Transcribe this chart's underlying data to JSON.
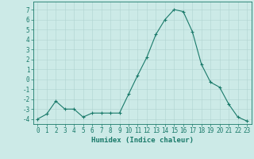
{
  "x": [
    0,
    1,
    2,
    3,
    4,
    5,
    6,
    7,
    8,
    9,
    10,
    11,
    12,
    13,
    14,
    15,
    16,
    17,
    18,
    19,
    20,
    21,
    22,
    23
  ],
  "y": [
    -4.0,
    -3.5,
    -2.2,
    -3.0,
    -3.0,
    -3.8,
    -3.4,
    -3.4,
    -3.4,
    -3.4,
    -1.5,
    0.4,
    2.2,
    4.5,
    6.0,
    7.0,
    6.8,
    4.8,
    1.5,
    -0.3,
    -0.8,
    -2.5,
    -3.8,
    -4.2
  ],
  "line_color": "#1a7a6a",
  "marker": "+",
  "marker_size": 3,
  "marker_lw": 0.8,
  "line_width": 0.8,
  "bg_color": "#cceae7",
  "grid_color": "#b0d4d0",
  "axis_color": "#1a7a6a",
  "tick_color": "#1a7a6a",
  "ylim": [
    -4.5,
    7.8
  ],
  "xlim": [
    -0.5,
    23.5
  ],
  "yticks": [
    -4,
    -3,
    -2,
    -1,
    0,
    1,
    2,
    3,
    4,
    5,
    6,
    7
  ],
  "xticks": [
    0,
    1,
    2,
    3,
    4,
    5,
    6,
    7,
    8,
    9,
    10,
    11,
    12,
    13,
    14,
    15,
    16,
    17,
    18,
    19,
    20,
    21,
    22,
    23
  ],
  "xlabel": "Humidex (Indice chaleur)",
  "xlabel_fontsize": 6.5,
  "tick_fontsize": 5.5
}
